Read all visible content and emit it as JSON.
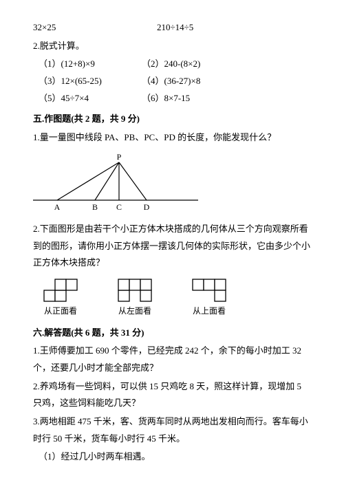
{
  "line1": {
    "a": "32×25",
    "b": "210÷14÷5"
  },
  "q2_title": "2.脱式计算。",
  "q2_items": {
    "r1a": "（1）(12+8)×9",
    "r1b": "（2）240-(8×2)",
    "r2a": "（3）12×(65-25)",
    "r2b": "（4）(36-27)×8",
    "r3a": "（5）45÷7×4",
    "r3b": "（6）8×7-15"
  },
  "sec5_title": "五.作图题(共 2 题，共 9 分)",
  "sec5_q1": "1.量一量图中线段 PA、PB、PC、PD 的长度，你能发现什么？",
  "sec5_fig": {
    "labels": {
      "P": "P",
      "A": "A",
      "B": "B",
      "C": "C",
      "D": "D"
    },
    "stroke": "#000000"
  },
  "sec5_q2": "2.下面图形是由若干个小正方体木块搭成的几何体从三个方向观察所看到的图形，请你用小正方体摆一摆该几何体的实际形状，它由多少个小正方体木块搭成？",
  "views": {
    "front": {
      "label": "从正面看",
      "cells": [
        [
          1,
          0
        ],
        [
          1,
          1
        ],
        [
          0,
          1
        ],
        [
          0,
          2
        ]
      ]
    },
    "left": {
      "label": "从左面看",
      "cells": [
        [
          1,
          0
        ],
        [
          0,
          0
        ],
        [
          0,
          1
        ],
        [
          0,
          2
        ],
        [
          1,
          2
        ]
      ]
    },
    "top": {
      "label": "从上面看",
      "cells": [
        [
          0,
          0
        ],
        [
          0,
          1
        ],
        [
          0,
          2
        ],
        [
          1,
          2
        ]
      ]
    },
    "cell_size": 16,
    "stroke": "#000000",
    "fill": "#ffffff"
  },
  "sec6_title": "六.解答题(共 6 题，共 31 分)",
  "sec6_q1": "1.王师傅要加工 690 个零件，已经完成 242 个，余下的每小时加工 32 个，还要几小时才能全部完成？",
  "sec6_q2": "2.养鸡场有一些饲料，可以供 15 只鸡吃 8 天，照这样计算，现增加 5 只鸡，这些饲料能吃几天？",
  "sec6_q3a": "3.两地相距 475 千米，客、货两车同时从两地出发相向而行。客车每小时行 50 千米，货车每小时行 45 千米。",
  "sec6_q3b": "（1）经过几小时两车相遇。"
}
